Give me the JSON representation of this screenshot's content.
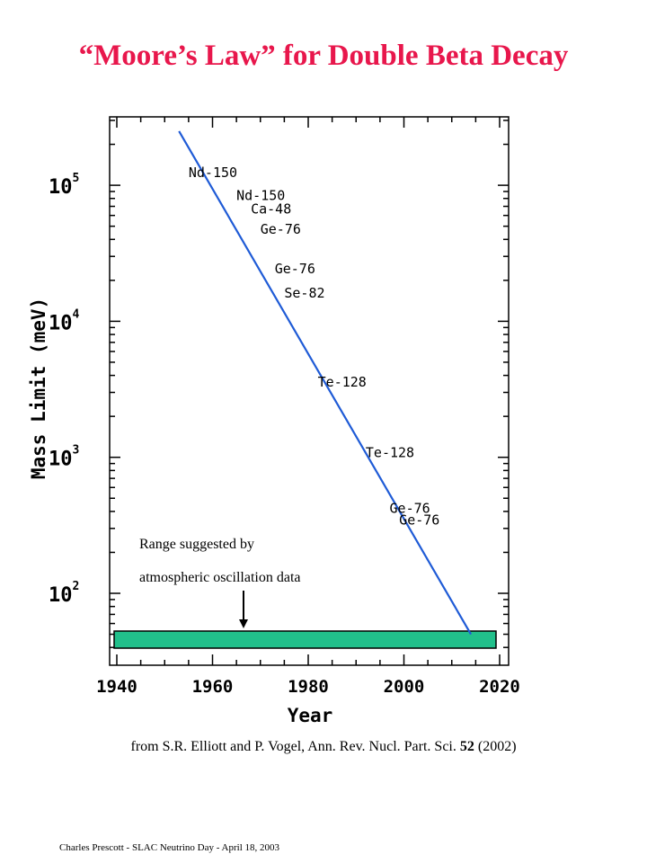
{
  "slide": {
    "title": "“Moore’s Law” for Double Beta Decay",
    "citation_prefix": "from S.R. Elliott and P. Vogel, Ann. Rev. Nucl. Part. Sci. ",
    "citation_volume": "52",
    "citation_suffix": " (2002)",
    "footer": "Charles Prescott  -  SLAC Neutrino Day  -  April 18, 2003"
  },
  "chart_data": {
    "type": "line",
    "title": "",
    "xlabel": "Year",
    "ylabel": "Mass Limit (meV)",
    "xlim": [
      1940,
      2020
    ],
    "ylim": [
      40,
      300000
    ],
    "yscale": "log",
    "x_ticks": [
      "1940",
      "1960",
      "1980",
      "2000",
      "2020"
    ],
    "y_ticks": [
      {
        "base": "10",
        "exp": "2",
        "value": 100
      },
      {
        "base": "10",
        "exp": "3",
        "value": 1000
      },
      {
        "base": "10",
        "exp": "4",
        "value": 10000
      },
      {
        "base": "10",
        "exp": "5",
        "value": 100000
      }
    ],
    "series": [
      {
        "x": [
          1953,
          2014
        ],
        "y": [
          250000,
          50
        ],
        "color": "#1f5bd6"
      }
    ],
    "annotations": [
      {
        "text": "Nd-150",
        "x": 1955,
        "y": 115000
      },
      {
        "text": "Nd-150",
        "x": 1965,
        "y": 78000
      },
      {
        "text": "Ca-48",
        "x": 1968,
        "y": 62000
      },
      {
        "text": "Ge-76",
        "x": 1970,
        "y": 44000
      },
      {
        "text": "Ge-76",
        "x": 1973,
        "y": 22500
      },
      {
        "text": "Se-82",
        "x": 1975,
        "y": 15000
      },
      {
        "text": "Te-128",
        "x": 1982,
        "y": 3300
      },
      {
        "text": "Te-128",
        "x": 1992,
        "y": 1000
      },
      {
        "text": "Ge-76",
        "x": 1997,
        "y": 390
      },
      {
        "text": "Ge-76",
        "x": 1999,
        "y": 320
      }
    ],
    "band": {
      "label_line1": "Range suggested by",
      "label_line2": "atmospheric  oscillation data",
      "color": "#21c08b"
    }
  }
}
